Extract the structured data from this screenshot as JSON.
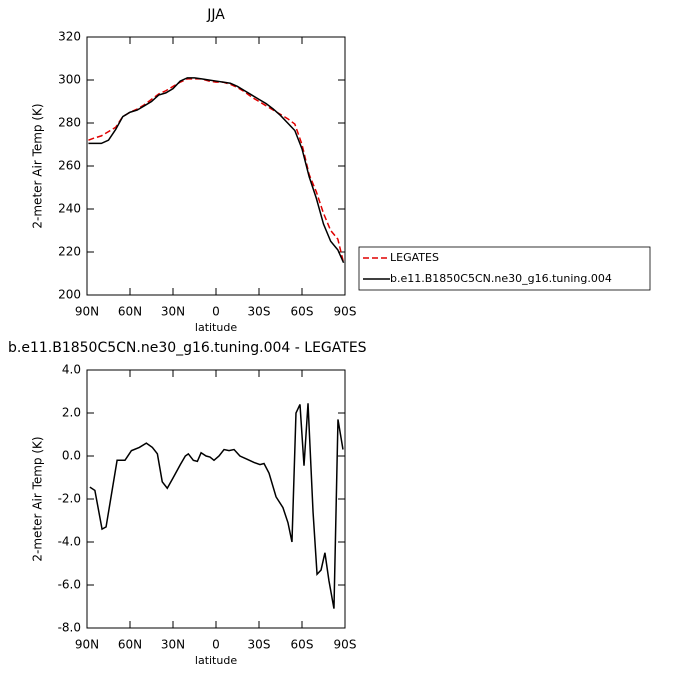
{
  "chart_data": [
    {
      "type": "line",
      "title": "JJA",
      "xlabel": "latitude",
      "ylabel": "2-meter Air Temp (K)",
      "x": [
        89,
        85,
        80,
        75,
        70,
        65,
        60,
        55,
        50,
        45,
        40,
        35,
        30,
        25,
        20,
        15,
        10,
        5,
        0,
        -5,
        -10,
        -15,
        -20,
        -25,
        -30,
        -35,
        -40,
        -45,
        -50,
        -55,
        -60,
        -65,
        -70,
        -75,
        -80,
        -85,
        -89
      ],
      "series": [
        {
          "name": "LEGATES",
          "color": "#e00000",
          "linestyle": "dashed",
          "values": [
            272,
            273,
            274,
            276,
            278,
            283,
            285,
            286.5,
            288.5,
            291,
            293.5,
            295,
            297,
            299,
            300.5,
            300.5,
            300.5,
            299.5,
            299,
            299,
            298,
            296.5,
            294.5,
            292,
            290,
            288,
            286,
            284,
            282,
            279.5,
            270,
            256,
            248,
            238,
            230,
            226,
            215
          ]
        },
        {
          "name": "b.e11.B1850C5CN.ne30_g16.tuning.004",
          "color": "#000000",
          "linestyle": "solid",
          "values": [
            270.5,
            270.5,
            270.5,
            272,
            277,
            283,
            285,
            286,
            288,
            290,
            293,
            294,
            296,
            299.5,
            301,
            301,
            300.5,
            300,
            299.5,
            299,
            298.5,
            297,
            295,
            293,
            291,
            289,
            286.5,
            283.5,
            280,
            276.5,
            268,
            255,
            245,
            233,
            225,
            221,
            215
          ]
        }
      ],
      "xlim": [
        90,
        -90
      ],
      "xticks": [
        {
          "value": 90,
          "label": "90N"
        },
        {
          "value": 60,
          "label": "60N"
        },
        {
          "value": 30,
          "label": "30N"
        },
        0,
        {
          "value": -30,
          "label": "30S"
        },
        {
          "value": -60,
          "label": "60S"
        },
        {
          "value": -90,
          "label": "90S"
        }
      ],
      "ylim": [
        200,
        320
      ],
      "yticks": [
        200,
        220,
        240,
        260,
        280,
        300,
        320
      ],
      "legend": "right"
    },
    {
      "type": "line",
      "title": "b.e11.B1850C5CN.ne30_g16.tuning.004 - LEGATES",
      "xlabel": "latitude",
      "ylabel": "2-meter Air Temp (K)",
      "x": [
        88,
        84.5,
        79.5,
        76.7,
        69,
        63.5,
        59,
        53.5,
        48.6,
        44.4,
        40.9,
        37.5,
        34,
        29.8,
        24.9,
        21.4,
        19.3,
        15.8,
        13,
        10.4,
        6.9,
        4.2,
        1.4,
        -2.1,
        -5.6,
        -9.1,
        -12.6,
        -16.7,
        -21.6,
        -26.5,
        -30.7,
        -33.5,
        -37,
        -41.9,
        -46.7,
        -50.2,
        -53,
        -55.8,
        -58.6,
        -61.4,
        -64.2,
        -67.7,
        -70.5,
        -73.3,
        -76,
        -78.8,
        -82.3,
        -85.1,
        -88.6
      ],
      "series": [
        {
          "name": "b.e11.B1850C5CN.ne30_g16.tuning.004 - LEGATES",
          "color": "#000000",
          "linestyle": "solid",
          "values": [
            -1.45,
            -1.6,
            -3.4,
            -3.3,
            -0.2,
            -0.2,
            0.25,
            0.4,
            0.6,
            0.4,
            0.1,
            -1.2,
            -1.5,
            -1.0,
            -0.4,
            0.0,
            0.1,
            -0.2,
            -0.25,
            0.15,
            0.0,
            -0.05,
            -0.2,
            0.0,
            0.3,
            0.25,
            0.3,
            0.0,
            -0.15,
            -0.3,
            -0.4,
            -0.35,
            -0.8,
            -1.9,
            -2.4,
            -3.1,
            -4.0,
            2.0,
            2.4,
            -0.45,
            2.45,
            -2.6,
            -5.5,
            -5.3,
            -4.5,
            -5.8,
            -7.1,
            1.7,
            0.3
          ]
        }
      ],
      "xlim": [
        90,
        -90
      ],
      "xticks": [
        {
          "value": 90,
          "label": "90N"
        },
        {
          "value": 60,
          "label": "60N"
        },
        {
          "value": 30,
          "label": "30N"
        },
        0,
        {
          "value": -30,
          "label": "30S"
        },
        {
          "value": -60,
          "label": "60S"
        },
        {
          "value": -90,
          "label": "90S"
        }
      ],
      "ylim": [
        -8,
        4
      ],
      "yticks": [
        {
          "value": -8,
          "label": "-8.0"
        },
        {
          "value": -6,
          "label": "-6.0"
        },
        {
          "value": -4,
          "label": "-4.0"
        },
        {
          "value": -2,
          "label": "-2.0"
        },
        {
          "value": 0,
          "label": "0.0"
        },
        {
          "value": 2,
          "label": "2.0"
        },
        {
          "value": 4,
          "label": "4.0"
        }
      ]
    }
  ]
}
